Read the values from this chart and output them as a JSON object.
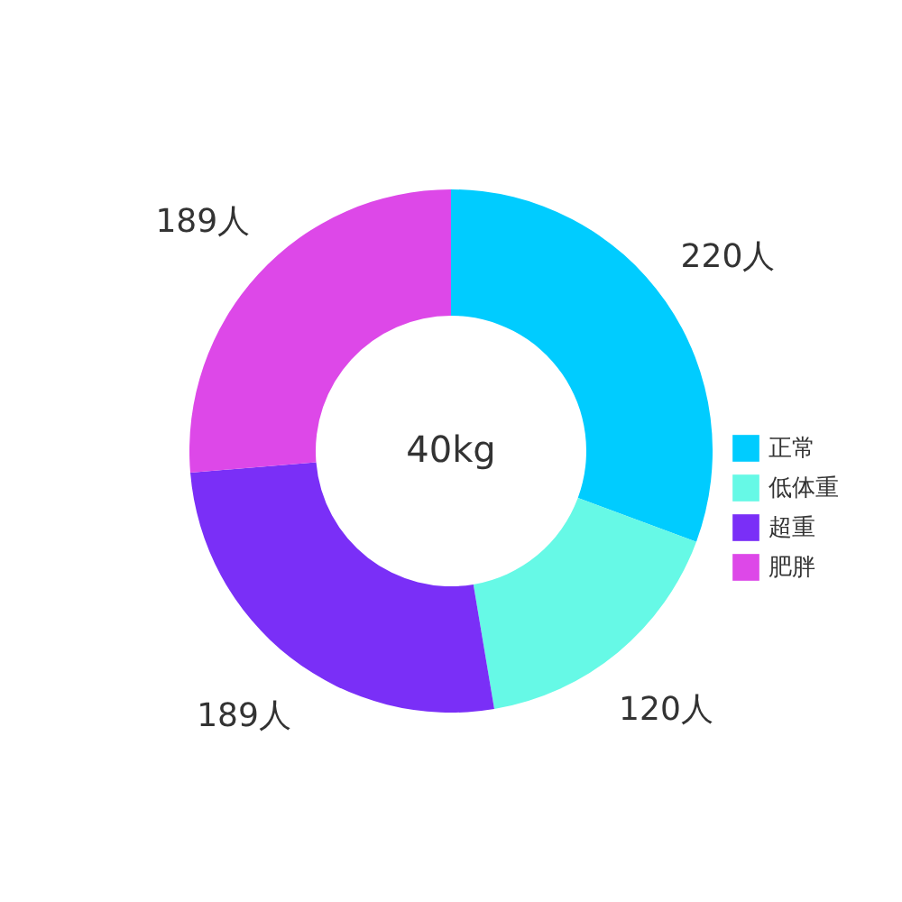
{
  "chart_data": {
    "type": "donut",
    "categories": [
      "正常",
      "低体重",
      "超重",
      "肥胖"
    ],
    "values": [
      220,
      120,
      189,
      189
    ],
    "colors": [
      "#00ccff",
      "#66f9e6",
      "#7a2ff7",
      "#dd48e8"
    ],
    "value_labels": [
      "220人",
      "120人",
      "189人",
      "189人"
    ],
    "annotations": [
      "40kg"
    ],
    "legend": "right"
  }
}
